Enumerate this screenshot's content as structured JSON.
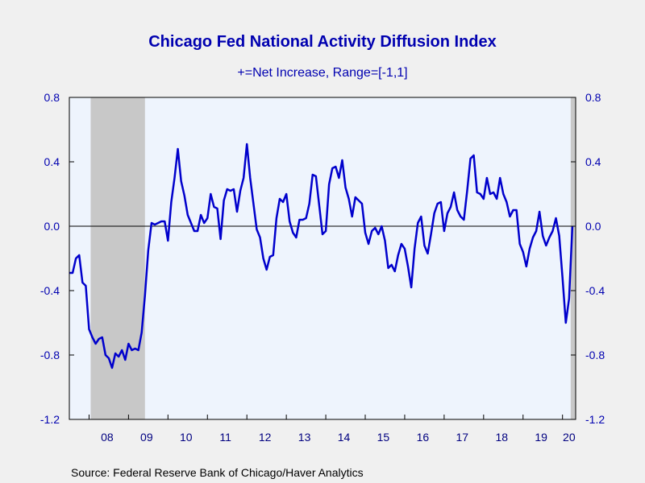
{
  "chart_data": {
    "type": "line",
    "title": "Chicago Fed National Activity Diffusion Index",
    "subtitle": "+=Net Increase, Range=[-1,1]",
    "source": "Source:  Federal Reserve Bank of Chicago/Haver Analytics",
    "ylim": [
      -1.2,
      0.8
    ],
    "y_ticks": [
      "0.8",
      "0.4",
      "0.0",
      "-0.4",
      "-0.8",
      "-1.2"
    ],
    "x_tick_labels": [
      "08",
      "09",
      "10",
      "11",
      "12",
      "13",
      "14",
      "15",
      "16",
      "17",
      "18",
      "19",
      "20"
    ],
    "x_range": [
      "2007-07",
      "2020-05"
    ],
    "recessions": [
      [
        "2008-01",
        "2009-06"
      ],
      [
        "2020-03",
        "2020-05"
      ]
    ],
    "grid": false,
    "zero_line": true,
    "colors": {
      "line": "#0000cc",
      "text": "#0000b0",
      "plot_bg": "#eef4fd",
      "recession": "#c8c8c8",
      "page_bg": "#f0f0f0"
    },
    "series": [
      {
        "x_start": "2007-07",
        "frequency": "monthly",
        "values": [
          -0.29,
          -0.29,
          -0.2,
          -0.18,
          -0.35,
          -0.37,
          -0.64,
          -0.69,
          -0.73,
          -0.7,
          -0.69,
          -0.8,
          -0.82,
          -0.88,
          -0.79,
          -0.81,
          -0.77,
          -0.83,
          -0.73,
          -0.77,
          -0.76,
          -0.77,
          -0.66,
          -0.43,
          -0.15,
          0.02,
          0.01,
          0.02,
          0.03,
          0.03,
          -0.09,
          0.15,
          0.3,
          0.48,
          0.28,
          0.19,
          0.07,
          0.02,
          -0.03,
          -0.03,
          0.07,
          0.02,
          0.05,
          0.2,
          0.12,
          0.11,
          -0.08,
          0.16,
          0.23,
          0.22,
          0.23,
          0.09,
          0.22,
          0.3,
          0.51,
          0.3,
          0.14,
          -0.02,
          -0.07,
          -0.2,
          -0.27,
          -0.19,
          -0.18,
          0.05,
          0.17,
          0.15,
          0.2,
          0.03,
          -0.04,
          -0.07,
          0.04,
          0.04,
          0.05,
          0.14,
          0.32,
          0.31,
          0.13,
          -0.05,
          -0.03,
          0.26,
          0.36,
          0.37,
          0.3,
          0.41,
          0.24,
          0.17,
          0.06,
          0.18,
          0.16,
          0.14,
          -0.04,
          -0.11,
          -0.03,
          -0.01,
          -0.05,
          0.0,
          -0.09,
          -0.26,
          -0.24,
          -0.28,
          -0.18,
          -0.11,
          -0.14,
          -0.25,
          -0.38,
          -0.14,
          0.02,
          0.06,
          -0.12,
          -0.17,
          -0.05,
          0.08,
          0.14,
          0.15,
          -0.03,
          0.08,
          0.12,
          0.21,
          0.1,
          0.06,
          0.04,
          0.22,
          0.42,
          0.44,
          0.21,
          0.2,
          0.17,
          0.3,
          0.2,
          0.21,
          0.17,
          0.3,
          0.2,
          0.15,
          0.06,
          0.1,
          0.1,
          -0.11,
          -0.16,
          -0.25,
          -0.14,
          -0.07,
          -0.03,
          0.09,
          -0.06,
          -0.12,
          -0.07,
          -0.03,
          0.05,
          -0.06,
          -0.32,
          -0.6,
          -0.45,
          0.0
        ]
      }
    ]
  }
}
